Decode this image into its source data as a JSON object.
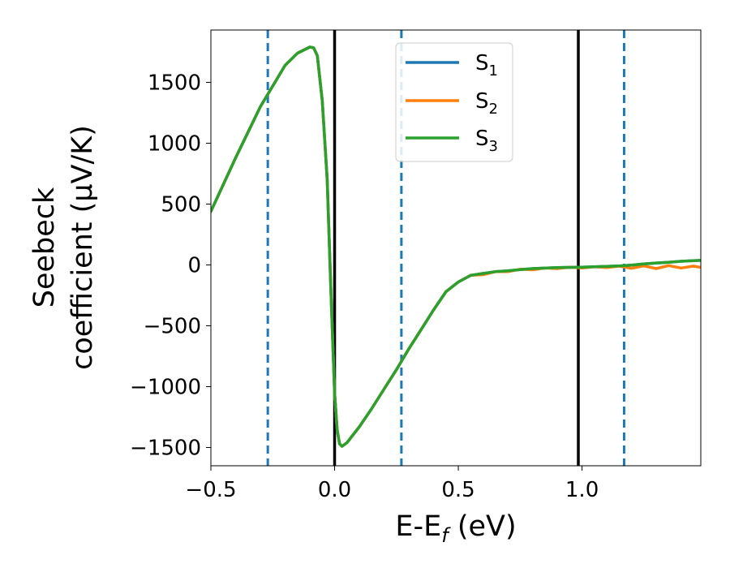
{
  "chart_data": {
    "type": "line",
    "xlabel": {
      "base": "E-E",
      "sub": "f",
      "unit": " (eV)"
    },
    "ylabel": {
      "line1": "Seebeck",
      "line2": "coefficient  (μV/K)"
    },
    "xlim": [
      -0.5,
      1.48
    ],
    "ylim": [
      -1650,
      1930
    ],
    "xticks": [
      -0.5,
      0.0,
      0.5,
      1.0
    ],
    "xtick_labels": [
      "−0.5",
      "0.0",
      "0.5",
      "1.0"
    ],
    "yticks": [
      -1500,
      -1000,
      -500,
      0,
      500,
      1000,
      1500
    ],
    "ytick_labels": [
      "−1500",
      "−1000",
      "−500",
      "0",
      "500",
      "1000",
      "1500"
    ],
    "grid": false,
    "legend_position": "top-center",
    "vlines": [
      {
        "x": -0.27,
        "style": "dashed",
        "color": "#1f77b4"
      },
      {
        "x": 0.0,
        "style": "solid",
        "color": "#000000"
      },
      {
        "x": 0.27,
        "style": "dashed",
        "color": "#1f77b4"
      },
      {
        "x": 0.985,
        "style": "solid",
        "color": "#000000"
      },
      {
        "x": 1.17,
        "style": "dashed",
        "color": "#1f77b4"
      }
    ],
    "series": [
      {
        "name": {
          "base": "S",
          "sub": "1"
        },
        "color": "#1f77b4",
        "x": [
          -0.5,
          -0.4,
          -0.3,
          -0.2,
          -0.15,
          -0.1,
          -0.085,
          -0.07,
          -0.05,
          -0.03,
          -0.015,
          0.0,
          0.01,
          0.02,
          0.03,
          0.05,
          0.1,
          0.15,
          0.2,
          0.25,
          0.3,
          0.35,
          0.4,
          0.45,
          0.5,
          0.55,
          0.6,
          0.65,
          0.7,
          0.75,
          0.8,
          0.85,
          0.9,
          0.95,
          1.0,
          1.05,
          1.1,
          1.15,
          1.2,
          1.25,
          1.3,
          1.35,
          1.4,
          1.45,
          1.48
        ],
        "y": [
          440,
          880,
          1300,
          1640,
          1740,
          1790,
          1785,
          1720,
          1350,
          700,
          -200,
          -1050,
          -1350,
          -1470,
          -1490,
          -1460,
          -1330,
          -1180,
          -1020,
          -860,
          -690,
          -530,
          -370,
          -220,
          -140,
          -85,
          -70,
          -55,
          -48,
          -38,
          -30,
          -26,
          -22,
          -20,
          -18,
          -15,
          -12,
          -8,
          -2,
          8,
          16,
          22,
          30,
          35,
          37
        ]
      },
      {
        "name": {
          "base": "S",
          "sub": "2"
        },
        "color": "#ff7f0e",
        "x": [
          -0.5,
          -0.4,
          -0.3,
          -0.2,
          -0.15,
          -0.1,
          -0.085,
          -0.07,
          -0.05,
          -0.03,
          -0.015,
          0.0,
          0.01,
          0.02,
          0.03,
          0.05,
          0.1,
          0.15,
          0.2,
          0.25,
          0.3,
          0.35,
          0.4,
          0.45,
          0.5,
          0.55,
          0.6,
          0.65,
          0.7,
          0.75,
          0.8,
          0.85,
          0.9,
          0.95,
          1.0,
          1.05,
          1.1,
          1.15,
          1.2,
          1.25,
          1.3,
          1.35,
          1.4,
          1.45,
          1.48
        ],
        "y": [
          440,
          880,
          1300,
          1640,
          1740,
          1790,
          1785,
          1720,
          1350,
          700,
          -200,
          -1050,
          -1350,
          -1470,
          -1490,
          -1460,
          -1330,
          -1180,
          -1020,
          -860,
          -690,
          -530,
          -370,
          -220,
          -140,
          -85,
          -80,
          -55,
          -55,
          -35,
          -40,
          -25,
          -30,
          -18,
          -25,
          -15,
          -22,
          -10,
          -28,
          -8,
          -30,
          -5,
          -25,
          -10,
          -20
        ]
      },
      {
        "name": {
          "base": "S",
          "sub": "3"
        },
        "color": "#2ca02c",
        "x": [
          -0.5,
          -0.4,
          -0.3,
          -0.2,
          -0.15,
          -0.1,
          -0.085,
          -0.07,
          -0.05,
          -0.03,
          -0.015,
          0.0,
          0.01,
          0.02,
          0.03,
          0.05,
          0.1,
          0.15,
          0.2,
          0.25,
          0.3,
          0.35,
          0.4,
          0.45,
          0.5,
          0.55,
          0.6,
          0.65,
          0.7,
          0.75,
          0.8,
          0.85,
          0.9,
          0.95,
          1.0,
          1.05,
          1.1,
          1.15,
          1.2,
          1.25,
          1.3,
          1.35,
          1.4,
          1.45,
          1.48
        ],
        "y": [
          440,
          880,
          1300,
          1640,
          1740,
          1790,
          1785,
          1720,
          1350,
          700,
          -200,
          -1050,
          -1350,
          -1470,
          -1490,
          -1460,
          -1330,
          -1180,
          -1020,
          -860,
          -690,
          -530,
          -370,
          -220,
          -140,
          -85,
          -70,
          -55,
          -48,
          -38,
          -30,
          -26,
          -22,
          -20,
          -18,
          -15,
          -12,
          -8,
          -2,
          8,
          16,
          22,
          30,
          35,
          37
        ]
      }
    ]
  }
}
